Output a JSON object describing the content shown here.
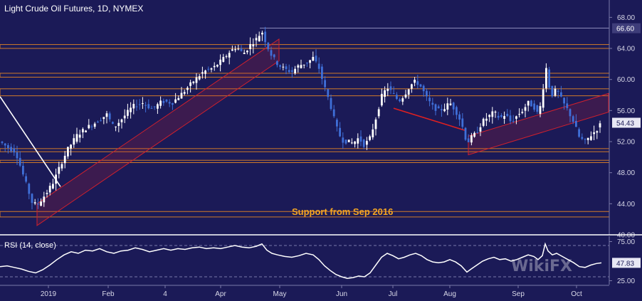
{
  "chart_data": [
    {
      "type": "candlestick",
      "title": "Light Crude Oil Futures, 1D, NYMEX",
      "y_ticks": [
        40.0,
        44.0,
        48.0,
        52.0,
        56.0,
        60.0,
        64.0,
        68.0
      ],
      "ylim": [
        40,
        69.5
      ],
      "last_price": 54.43,
      "highlighted_price": 66.6,
      "x_ticks": [
        "2019",
        "Feb",
        "4",
        "Apr",
        "May",
        "Jun",
        "Jul",
        "Aug",
        "Sep",
        "Oct"
      ],
      "horizontal_levels": [
        {
          "low": 64.0,
          "high": 64.5
        },
        {
          "low": 60.3,
          "high": 60.8
        },
        {
          "low": 57.9,
          "high": 58.8
        },
        {
          "low": 50.7,
          "high": 51.1
        },
        {
          "low": 49.3,
          "high": 49.6
        },
        {
          "low": 42.3,
          "high": 43.0
        }
      ],
      "annotation": "Support from Sep 2016",
      "close_path": [
        [
          0,
          52.0
        ],
        [
          10,
          51.3
        ],
        [
          22,
          50.7
        ],
        [
          35,
          47.0
        ],
        [
          45,
          44.2
        ],
        [
          52,
          43.8
        ],
        [
          58,
          44.5
        ],
        [
          66,
          45.5
        ],
        [
          75,
          46.8
        ],
        [
          85,
          49.0
        ],
        [
          95,
          51.0
        ],
        [
          108,
          52.8
        ],
        [
          122,
          53.8
        ],
        [
          135,
          54.5
        ],
        [
          150,
          55.5
        ],
        [
          160,
          53.8
        ],
        [
          172,
          55.0
        ],
        [
          186,
          56.5
        ],
        [
          200,
          57.0
        ],
        [
          214,
          56.2
        ],
        [
          228,
          57.2
        ],
        [
          242,
          57.0
        ],
        [
          258,
          58.4
        ],
        [
          272,
          59.8
        ],
        [
          286,
          61.0
        ],
        [
          300,
          61.5
        ],
        [
          312,
          62.5
        ],
        [
          322,
          63.5
        ],
        [
          332,
          64.2
        ],
        [
          342,
          63.3
        ],
        [
          352,
          64.5
        ],
        [
          360,
          65.2
        ],
        [
          368,
          66.2
        ],
        [
          375,
          64.4
        ],
        [
          382,
          63.0
        ],
        [
          390,
          62.0
        ],
        [
          400,
          61.3
        ],
        [
          410,
          61.0
        ],
        [
          420,
          61.8
        ],
        [
          432,
          62.2
        ],
        [
          440,
          62.8
        ],
        [
          448,
          61.5
        ],
        [
          456,
          59.0
        ],
        [
          464,
          56.8
        ],
        [
          472,
          54.0
        ],
        [
          480,
          52.2
        ],
        [
          488,
          52.0
        ],
        [
          496,
          51.8
        ],
        [
          504,
          52.5
        ],
        [
          512,
          51.5
        ],
        [
          520,
          52.5
        ],
        [
          528,
          55.0
        ],
        [
          536,
          57.8
        ],
        [
          544,
          59.0
        ],
        [
          552,
          58.2
        ],
        [
          560,
          57.2
        ],
        [
          568,
          58.0
        ],
        [
          576,
          59.2
        ],
        [
          584,
          59.8
        ],
        [
          592,
          59.0
        ],
        [
          600,
          57.5
        ],
        [
          608,
          56.5
        ],
        [
          616,
          56.0
        ],
        [
          624,
          56.3
        ],
        [
          632,
          57.0
        ],
        [
          640,
          56.0
        ],
        [
          648,
          54.5
        ],
        [
          656,
          51.8
        ],
        [
          662,
          52.5
        ],
        [
          670,
          53.2
        ],
        [
          678,
          54.6
        ],
        [
          686,
          55.2
        ],
        [
          694,
          55.8
        ],
        [
          702,
          55.0
        ],
        [
          710,
          55.5
        ],
        [
          718,
          54.5
        ],
        [
          726,
          55.3
        ],
        [
          734,
          56.0
        ],
        [
          742,
          57.0
        ],
        [
          750,
          56.5
        ],
        [
          756,
          55.5
        ],
        [
          762,
          57.5
        ],
        [
          766,
          62.5
        ],
        [
          770,
          59.5
        ],
        [
          776,
          58.0
        ],
        [
          782,
          58.8
        ],
        [
          790,
          57.2
        ],
        [
          798,
          56.0
        ],
        [
          806,
          54.5
        ],
        [
          814,
          52.5
        ],
        [
          822,
          52.0
        ],
        [
          830,
          52.8
        ],
        [
          838,
          53.5
        ],
        [
          845,
          54.43
        ]
      ],
      "trend_lines": [
        {
          "kind": "descending",
          "color": "#ffffff",
          "from": [
            0,
            57.8
          ],
          "to": [
            85,
            46.2
          ]
        },
        {
          "kind": "rising-channel",
          "color": "#d0202c",
          "from": [
            52,
            42.6
          ],
          "to": [
            392,
            63.8
          ],
          "width": 1.4
        },
        {
          "kind": "descending",
          "color": "#e02020",
          "from": [
            553,
            56.3
          ],
          "to": [
            655,
            53.4
          ]
        },
        {
          "kind": "rising-channel",
          "color": "#d0202c",
          "from": [
            658,
            51.5
          ],
          "to": [
            855,
            57.0
          ],
          "width": 1.2
        }
      ]
    },
    {
      "type": "line",
      "title": "RSI (14, close)",
      "y_ticks": [
        25.0,
        75.0
      ],
      "ylim": [
        20,
        80
      ],
      "dashed_levels": [
        30,
        70
      ],
      "last_value": 47.83,
      "series": [
        {
          "points": [
            [
              0,
              43
            ],
            [
              10,
              44
            ],
            [
              20,
              42
            ],
            [
              30,
              40
            ],
            [
              40,
              37
            ],
            [
              50,
              35
            ],
            [
              60,
              39
            ],
            [
              70,
              45
            ],
            [
              80,
              52
            ],
            [
              90,
              58
            ],
            [
              100,
              62
            ],
            [
              110,
              60
            ],
            [
              120,
              64
            ],
            [
              130,
              63
            ],
            [
              140,
              66
            ],
            [
              150,
              62
            ],
            [
              160,
              60
            ],
            [
              170,
              63
            ],
            [
              180,
              64
            ],
            [
              190,
              67
            ],
            [
              200,
              65
            ],
            [
              210,
              62
            ],
            [
              220,
              64
            ],
            [
              230,
              66
            ],
            [
              240,
              64
            ],
            [
              250,
              66
            ],
            [
              260,
              65
            ],
            [
              270,
              67
            ],
            [
              280,
              68
            ],
            [
              290,
              66
            ],
            [
              300,
              67
            ],
            [
              310,
              66
            ],
            [
              320,
              68
            ],
            [
              330,
              70
            ],
            [
              340,
              68
            ],
            [
              350,
              67
            ],
            [
              360,
              69
            ],
            [
              368,
              72
            ],
            [
              375,
              64
            ],
            [
              382,
              60
            ],
            [
              390,
              58
            ],
            [
              400,
              56
            ],
            [
              410,
              55
            ],
            [
              420,
              57
            ],
            [
              430,
              60
            ],
            [
              440,
              58
            ],
            [
              448,
              52
            ],
            [
              456,
              44
            ],
            [
              464,
              38
            ],
            [
              472,
              33
            ],
            [
              480,
              30
            ],
            [
              488,
              28
            ],
            [
              496,
              29
            ],
            [
              504,
              31
            ],
            [
              512,
              30
            ],
            [
              520,
              35
            ],
            [
              528,
              45
            ],
            [
              536,
              55
            ],
            [
              544,
              60
            ],
            [
              552,
              57
            ],
            [
              560,
              53
            ],
            [
              568,
              55
            ],
            [
              576,
              58
            ],
            [
              584,
              60
            ],
            [
              592,
              57
            ],
            [
              600,
              52
            ],
            [
              608,
              49
            ],
            [
              616,
              48
            ],
            [
              624,
              49
            ],
            [
              632,
              52
            ],
            [
              640,
              49
            ],
            [
              648,
              44
            ],
            [
              656,
              36
            ],
            [
              662,
              40
            ],
            [
              670,
              45
            ],
            [
              678,
              50
            ],
            [
              686,
              53
            ],
            [
              694,
              55
            ],
            [
              702,
              52
            ],
            [
              710,
              53
            ],
            [
              718,
              50
            ],
            [
              726,
              52
            ],
            [
              734,
              55
            ],
            [
              742,
              58
            ],
            [
              750,
              56
            ],
            [
              756,
              52
            ],
            [
              762,
              57
            ],
            [
              766,
              72
            ],
            [
              770,
              63
            ],
            [
              776,
              58
            ],
            [
              782,
              60
            ],
            [
              790,
              56
            ],
            [
              798,
              52
            ],
            [
              806,
              48
            ],
            [
              814,
              43
            ],
            [
              822,
              42
            ],
            [
              830,
              45
            ],
            [
              838,
              47
            ],
            [
              845,
              47.83
            ]
          ]
        }
      ]
    }
  ],
  "watermark": "WikiFX",
  "colors": {
    "background": "#1b1a57",
    "bull_candle": "#ffffff",
    "bear_candle": "#3f6fd8",
    "level_band": "#d07a2a",
    "rsi_line": "#ffffff",
    "axis_text": "#d8d8e8"
  }
}
